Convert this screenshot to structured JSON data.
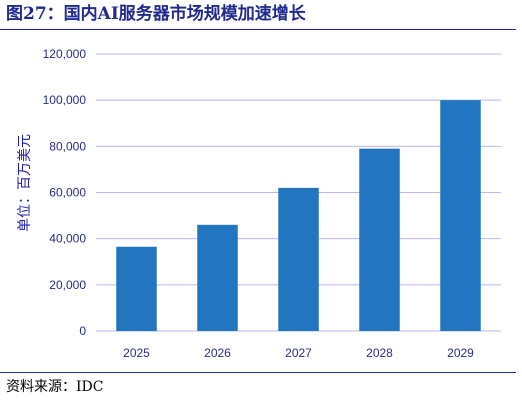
{
  "header": {
    "title": "图27：国内AI服务器市场规模加速增长"
  },
  "footer": {
    "source": "资料来源：IDC"
  },
  "chart_data": {
    "type": "bar",
    "categories": [
      "2025",
      "2026",
      "2027",
      "2028",
      "2029"
    ],
    "values": [
      36500,
      46000,
      62000,
      79000,
      100000
    ],
    "ylabel": "单位：百万美元",
    "ylim": [
      0,
      120000
    ],
    "yticks": [
      0,
      20000,
      40000,
      60000,
      80000,
      100000,
      120000
    ],
    "ytick_labels": [
      "0",
      "20,000",
      "40,000",
      "60,000",
      "80,000",
      "100,000",
      "120,000"
    ],
    "grid": true,
    "legend": "none",
    "colors": {
      "bar": "#2276bf",
      "grid": "#b9b9ef",
      "axis_text": "#2a2a8a",
      "title": "#1f2a8c"
    }
  }
}
